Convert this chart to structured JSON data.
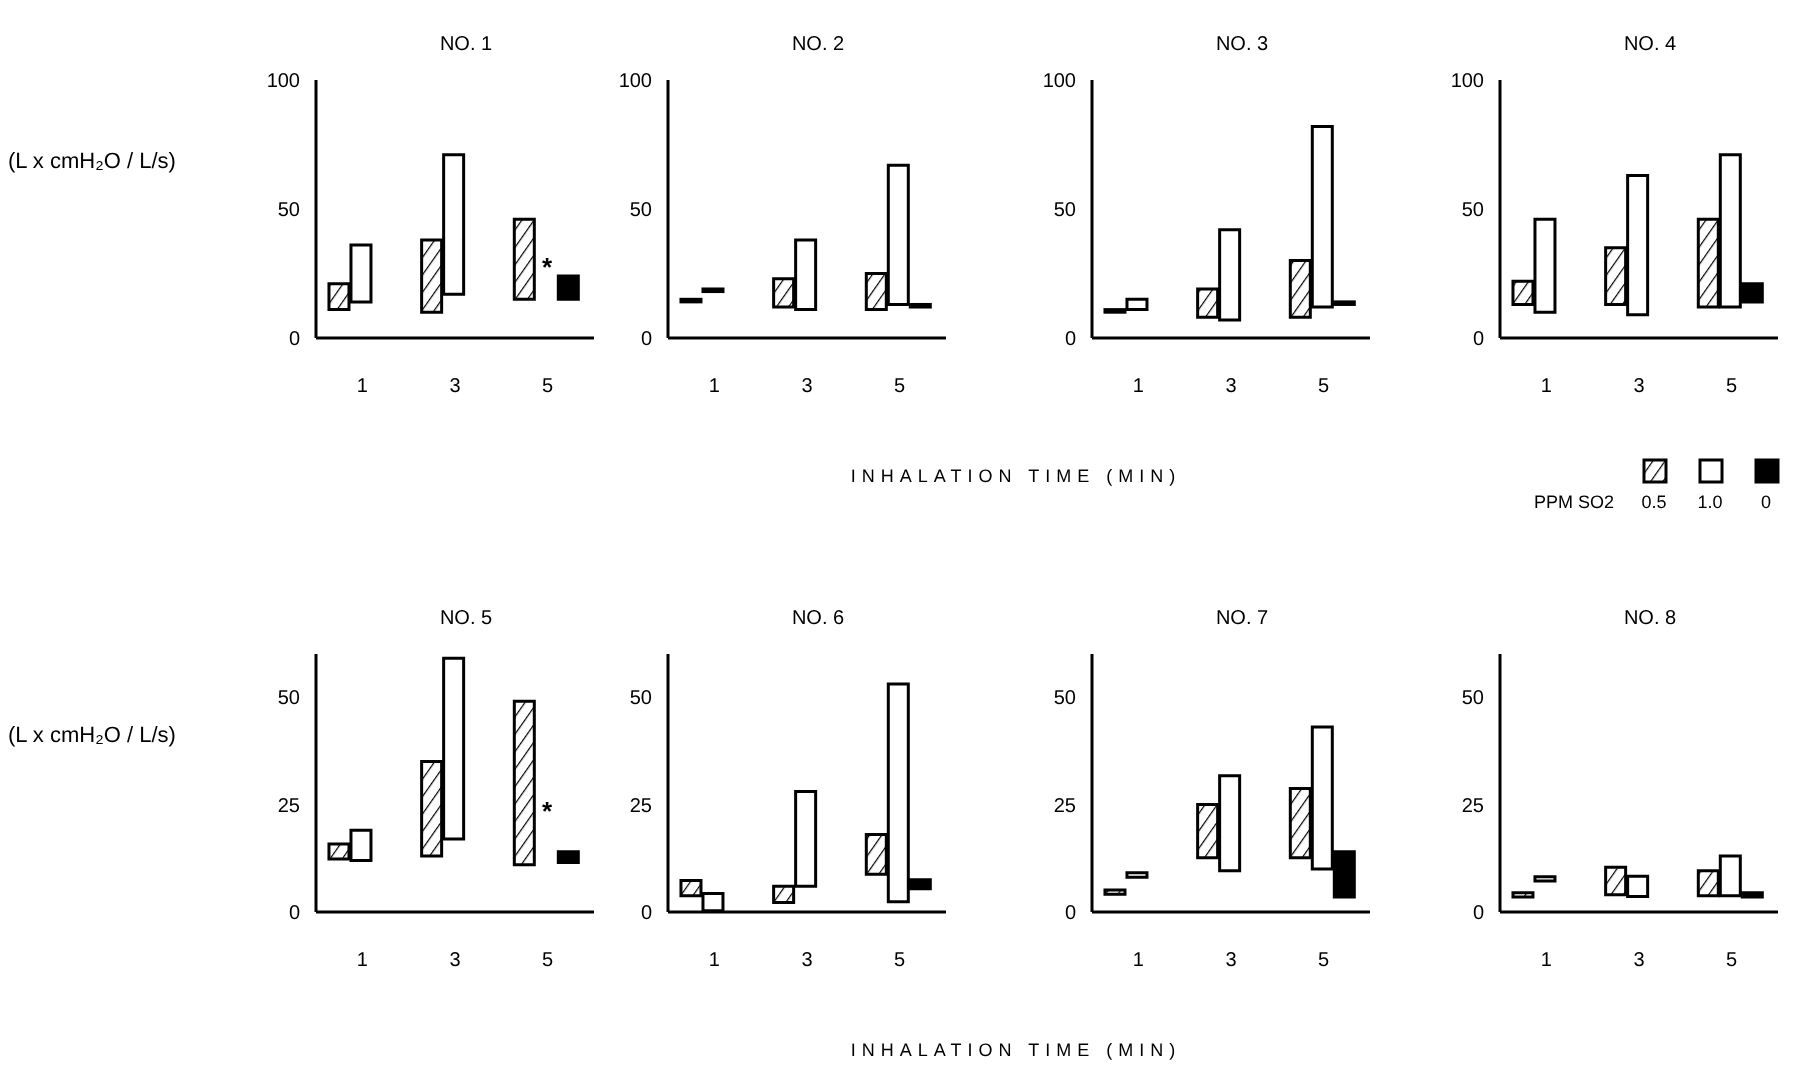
{
  "chart_data": [
    {
      "type": "bar",
      "title": "NO. 1",
      "ylabel": "(L x cmH₂O / L/s)",
      "categories": [
        "1",
        "3",
        "5"
      ],
      "ylim": [
        0,
        100
      ],
      "yticks": [
        0,
        50,
        100
      ],
      "annotations": [
        "*"
      ],
      "series": [
        {
          "color": "#000000",
          "base": [
            11,
            10,
            15
          ],
          "values": [
            10,
            28,
            31
          ]
        },
        {
          "color": "#ffffff",
          "base": [
            14,
            17,
            null
          ],
          "values": [
            22,
            54,
            null
          ]
        },
        {
          "color": "#000000",
          "base": [
            null,
            null,
            15
          ],
          "values": [
            null,
            null,
            9
          ]
        }
      ]
    },
    {
      "type": "bar",
      "title": "NO. 2",
      "categories": [
        "1",
        "3",
        "5"
      ],
      "ylim": [
        0,
        100
      ],
      "yticks": [
        0,
        50,
        100
      ],
      "series": [
        {
          "color": "#000000",
          "base": [
            14,
            12,
            11
          ],
          "values": [
            1,
            11,
            14
          ]
        },
        {
          "color": "#ffffff",
          "base": [
            18,
            11,
            13
          ],
          "values": [
            1,
            27,
            54
          ]
        },
        {
          "color": "#000000",
          "base": [
            null,
            null,
            12
          ],
          "values": [
            null,
            null,
            1
          ]
        }
      ]
    },
    {
      "type": "bar",
      "title": "NO. 3",
      "xlabel": "INHALATION TIME (MIN)",
      "categories": [
        "1",
        "3",
        "5"
      ],
      "ylim": [
        0,
        100
      ],
      "yticks": [
        0,
        50,
        100
      ],
      "series": [
        {
          "color": "#000000",
          "base": [
            10,
            8,
            8
          ],
          "values": [
            1,
            11,
            22
          ]
        },
        {
          "color": "#ffffff",
          "base": [
            11,
            7,
            12
          ],
          "values": [
            4,
            35,
            70
          ]
        },
        {
          "color": "#000000",
          "base": [
            null,
            null,
            13
          ],
          "values": [
            null,
            null,
            1
          ]
        }
      ]
    },
    {
      "type": "bar",
      "title": "NO. 4",
      "categories": [
        "1",
        "3",
        "5"
      ],
      "ylim": [
        0,
        100
      ],
      "yticks": [
        0,
        50,
        100
      ],
      "legend": "bottom right",
      "legend_title": "PPM SO2",
      "series": [
        {
          "name": "0.5",
          "color": "#000000",
          "base": [
            13,
            13,
            12
          ],
          "values": [
            9,
            22,
            34
          ]
        },
        {
          "name": "1.0",
          "color": "#ffffff",
          "base": [
            10,
            9,
            12
          ],
          "values": [
            36,
            54,
            59
          ]
        },
        {
          "name": "0",
          "color": "#000000",
          "base": [
            null,
            null,
            14
          ],
          "values": [
            null,
            null,
            7
          ]
        }
      ]
    },
    {
      "type": "bar",
      "title": "NO. 5",
      "ylabel": "(L x cmH₂O / L/s)",
      "categories": [
        "1",
        "3",
        "5"
      ],
      "ylim": [
        0,
        60
      ],
      "yticks": [
        0,
        25,
        50
      ],
      "annotations": [
        "*"
      ],
      "series": [
        {
          "color": "#000000",
          "base": [
            12.3,
            13,
            11
          ],
          "values": [
            3.5,
            22,
            38
          ]
        },
        {
          "color": "#ffffff",
          "base": [
            12,
            17,
            null
          ],
          "values": [
            7,
            42,
            null
          ]
        },
        {
          "color": "#000000",
          "base": [
            null,
            null,
            11.5
          ],
          "values": [
            null,
            null,
            2.5
          ]
        }
      ]
    },
    {
      "type": "bar",
      "title": "NO. 6",
      "categories": [
        "1",
        "3",
        "5"
      ],
      "ylim": [
        0,
        60
      ],
      "yticks": [
        0,
        25,
        50
      ],
      "series": [
        {
          "color": "#000000",
          "base": [
            3.8,
            2.2,
            8.8
          ],
          "values": [
            3.5,
            3.8,
            9.2
          ]
        },
        {
          "color": "#ffffff",
          "base": [
            0.3,
            6,
            2.4
          ],
          "values": [
            4,
            22,
            50.6
          ]
        },
        {
          "color": "#000000",
          "base": [
            null,
            null,
            5.4
          ],
          "values": [
            null,
            null,
            2.1
          ]
        }
      ]
    },
    {
      "type": "bar",
      "title": "NO. 7",
      "xlabel": "INHALATION TIME (MIN)",
      "categories": [
        "1",
        "3",
        "5"
      ],
      "ylim": [
        0,
        60
      ],
      "yticks": [
        0,
        25,
        50
      ],
      "series": [
        {
          "color": "#000000",
          "base": [
            4.1,
            12.6,
            12.6
          ],
          "values": [
            1,
            12.4,
            16.1
          ]
        },
        {
          "color": "#ffffff",
          "base": [
            8.1,
            9.6,
            10
          ],
          "values": [
            1,
            22.1,
            33
          ]
        },
        {
          "color": "#000000",
          "base": [
            null,
            null,
            3.5
          ],
          "values": [
            null,
            null,
            10.5
          ]
        }
      ]
    },
    {
      "type": "bar",
      "title": "NO. 8",
      "categories": [
        "1",
        "3",
        "5"
      ],
      "ylim": [
        0,
        60
      ],
      "yticks": [
        0,
        25,
        50
      ],
      "series": [
        {
          "color": "#000000",
          "base": [
            3.5,
            4,
            3.8
          ],
          "values": [
            1,
            6.4,
            5.8
          ]
        },
        {
          "color": "#ffffff",
          "base": [
            7.2,
            3.6,
            3.8
          ],
          "values": [
            1,
            4.7,
            9.2
          ]
        },
        {
          "color": "#000000",
          "base": [
            null,
            null,
            3.5
          ],
          "values": [
            null,
            null,
            1
          ]
        }
      ]
    }
  ]
}
